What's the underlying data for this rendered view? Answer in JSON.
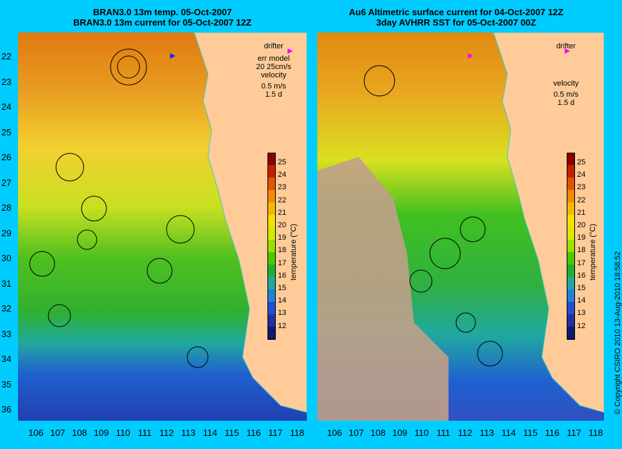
{
  "left_panel": {
    "title_line1": "BRAN3.0 13m temp. 05-Oct-2007",
    "title_line2": "BRAN3.0 13m current for 05-Oct-2007 12Z",
    "legend": {
      "drifter": "drifter",
      "err_model_line1": "err model",
      "err_model_line2": "20 25cm/s",
      "velocity": "velocity",
      "scale": "0.5 m/s",
      "duration": "1.5 d"
    }
  },
  "right_panel": {
    "title_line1": "Au6 Altimetric surface current for 04-Oct-2007 12Z",
    "title_line2": "3day AVHRR SST for 05-Oct-2007 00Z",
    "legend": {
      "drifter": "drifter",
      "velocity": "velocity",
      "scale": "0.5 m/s",
      "duration": "1.5 d"
    }
  },
  "latitudes": [
    "22",
    "23",
    "24",
    "25",
    "26",
    "27",
    "28",
    "29",
    "30",
    "31",
    "32",
    "33",
    "34",
    "35",
    "36"
  ],
  "longitudes": [
    "106",
    "107",
    "108",
    "109",
    "110",
    "111",
    "112",
    "113",
    "114",
    "115",
    "116",
    "117",
    "118"
  ],
  "colorbar": {
    "title": "temperature (°C)",
    "ticks": [
      "25",
      "24",
      "23",
      "22",
      "21",
      "20",
      "19",
      "18",
      "17",
      "16",
      "15",
      "14",
      "13",
      "12"
    ],
    "colors": [
      "#8b0000",
      "#c42000",
      "#e05500",
      "#f08a00",
      "#f5b800",
      "#f5e000",
      "#d8e800",
      "#9ae000",
      "#4cc800",
      "#20b030",
      "#20a8a0",
      "#2080d8",
      "#2050d0",
      "#2030a0",
      "#101870"
    ]
  },
  "copyright": "© Copyright CSIRO 2010   13-Aug-2010 18:58:52"
}
